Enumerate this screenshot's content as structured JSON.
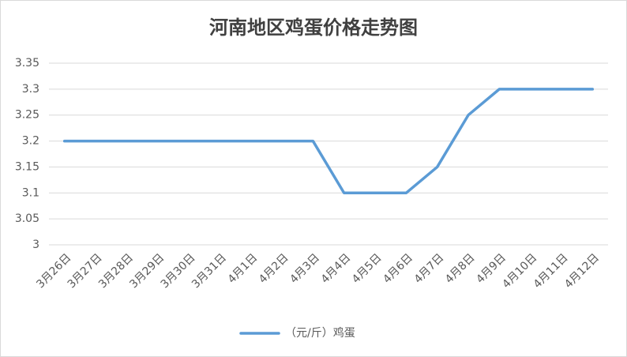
{
  "chart_data": {
    "type": "line",
    "title": "河南地区鸡蛋价格走势图",
    "categories": [
      "3月26日",
      "3月27日",
      "3月28日",
      "3月29日",
      "3月30日",
      "3月31日",
      "4月1日",
      "4月2日",
      "4月3日",
      "4月4日",
      "4月5日",
      "4月6日",
      "4月7日",
      "4月8日",
      "4月9日",
      "4月10日",
      "4月11日",
      "4月12日"
    ],
    "series": [
      {
        "name": "（元/斤）鸡蛋",
        "color": "#5b9bd5",
        "values": [
          3.2,
          3.2,
          3.2,
          3.2,
          3.2,
          3.2,
          3.2,
          3.2,
          3.2,
          3.1,
          3.1,
          3.1,
          3.15,
          3.25,
          3.3,
          3.3,
          3.3,
          3.3
        ]
      }
    ],
    "ylim": [
      3,
      3.35
    ],
    "yticks": [
      3,
      3.05,
      3.1,
      3.15,
      3.2,
      3.25,
      3.3,
      3.35
    ],
    "grid": true,
    "legend": "bottom"
  }
}
